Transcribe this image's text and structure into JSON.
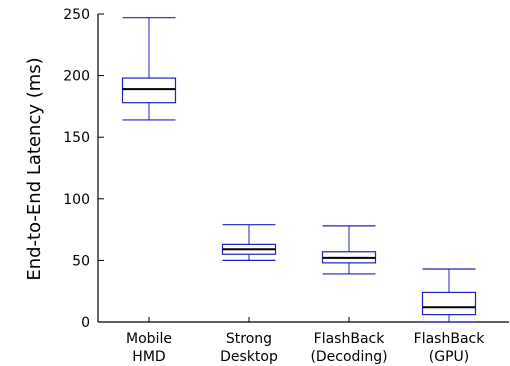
{
  "chart_data": {
    "type": "box",
    "title": "",
    "xlabel": "",
    "ylabel": "End-to-End Latency (ms)",
    "ylim": [
      0,
      250
    ],
    "yticks": [
      "0",
      "50",
      "100",
      "150",
      "200",
      "250"
    ],
    "grid": false,
    "colors": {
      "box": "#2020c0",
      "median": "#000000",
      "axis": "#000000"
    },
    "categories": [
      {
        "line1": "Mobile",
        "line2": "HMD"
      },
      {
        "line1": "Strong",
        "line2": "Desktop"
      },
      {
        "line1": "FlashBack",
        "line2": "(Decoding)"
      },
      {
        "line1": "FlashBack",
        "line2": "(GPU)"
      }
    ],
    "boxes": [
      {
        "min": 164,
        "q1": 178,
        "median": 189,
        "q3": 198,
        "max": 247
      },
      {
        "min": 50,
        "q1": 55,
        "median": 59,
        "q3": 63,
        "max": 79
      },
      {
        "min": 39,
        "q1": 48,
        "median": 52,
        "q3": 57,
        "max": 78
      },
      {
        "min": 0,
        "q1": 6,
        "median": 12,
        "q3": 24,
        "max": 43
      }
    ]
  }
}
